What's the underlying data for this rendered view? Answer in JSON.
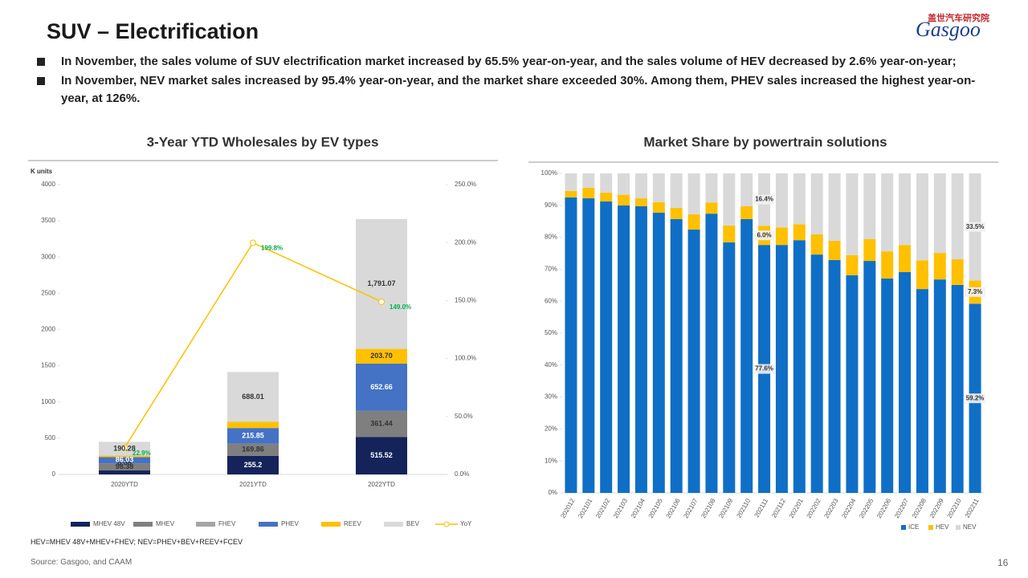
{
  "header": {
    "title": "SUV – Electrification",
    "bullets": [
      "In November, the sales volume of SUV electrification market increased by 65.5% year-on-year, and the sales volume of HEV decreased by 2.6% year-on-year;",
      "In November, NEV market sales increased by 95.4% year-on-year, and the market share exceeded 30%. Among them, PHEV sales increased the highest year-on-year, at 126%."
    ]
  },
  "logo": {
    "cn": "盖世汽车研究院",
    "en": "Gasgoo"
  },
  "chart_data": [
    {
      "type": "bar",
      "stacked": true,
      "title": "3-Year YTD Wholesales  by EV types",
      "ylabel": "K units",
      "categories": [
        "2020YTD",
        "2021YTD",
        "2022YTD"
      ],
      "ylim": [
        0,
        4000
      ],
      "yticks": [
        0,
        500,
        1000,
        1500,
        2000,
        2500,
        3000,
        3500,
        4000
      ],
      "y2lim": [
        0,
        250
      ],
      "y2ticks": [
        {
          "value": 0,
          "label": "0.0%"
        },
        {
          "value": 50,
          "label": "50.0%"
        },
        {
          "value": 100,
          "label": "100.0%"
        },
        {
          "value": 150,
          "label": "150.0%"
        },
        {
          "value": 200,
          "label": "200.0%"
        },
        {
          "value": 250,
          "label": "250.0%"
        }
      ],
      "series": [
        {
          "name": "MHEV 48V",
          "color": "#14235a",
          "values": [
            55,
            255.2,
            515.52
          ],
          "value_labels": [
            null,
            "255.2",
            "515.52"
          ]
        },
        {
          "name": "MHEV",
          "color": "#7f7f7f",
          "values": [
            98.38,
            169.86,
            361.44
          ],
          "value_labels": [
            "98.38",
            "169.86",
            "361.44"
          ]
        },
        {
          "name": "FHEV",
          "color": "#a5a5a5",
          "values": [
            0.08,
            0,
            0
          ],
          "value_labels": [
            "0.08",
            null,
            null
          ]
        },
        {
          "name": "PHEV",
          "color": "#4472c4",
          "values": [
            86.03,
            215.85,
            652.66
          ],
          "value_labels": [
            "86.03",
            "215.85",
            "652.66"
          ]
        },
        {
          "name": "REEV",
          "color": "#ffc000",
          "values": [
            20,
            85,
            203.7
          ],
          "value_labels": [
            null,
            null,
            "203.70"
          ]
        },
        {
          "name": "BEV",
          "color": "#d9d9d9",
          "values": [
            190.28,
            688.01,
            1791.07
          ],
          "value_labels": [
            "190.28",
            "688.01",
            "1,791.07"
          ]
        },
        {
          "name": "YoY",
          "color": "#ffc000",
          "type": "line",
          "axis": "y2",
          "label_color": "#00b050",
          "values": [
            22.9,
            199.8,
            149.0
          ],
          "value_labels": [
            "22.9%",
            "199.8%",
            "149.0%"
          ]
        }
      ]
    },
    {
      "type": "bar",
      "stacked": true,
      "title": "Market Share by powertrain solutions",
      "categories": [
        "202012",
        "202101",
        "202102",
        "202103",
        "202104",
        "202105",
        "202106",
        "202107",
        "202108",
        "202109",
        "202110",
        "202111",
        "202112",
        "202201",
        "202202",
        "202203",
        "202204",
        "202205",
        "202206",
        "202207",
        "202208",
        "202209",
        "202210",
        "202211"
      ],
      "ylim": [
        0,
        100
      ],
      "yticks": [
        {
          "value": 0,
          "label": "0%"
        },
        {
          "value": 10,
          "label": "10%"
        },
        {
          "value": 20,
          "label": "20%"
        },
        {
          "value": 30,
          "label": "30%"
        },
        {
          "value": 40,
          "label": "40%"
        },
        {
          "value": 50,
          "label": "50%"
        },
        {
          "value": 60,
          "label": "60%"
        },
        {
          "value": 70,
          "label": "70%"
        },
        {
          "value": 80,
          "label": "80%"
        },
        {
          "value": 90,
          "label": "90%"
        },
        {
          "value": 100,
          "label": "100%"
        }
      ],
      "series": [
        {
          "name": "ICE",
          "color": "#0f6fc6",
          "values": [
            92.5,
            92.2,
            91.2,
            90.0,
            89.7,
            87.7,
            85.7,
            82.4,
            87.4,
            78.4,
            85.7,
            77.6,
            77.6,
            79.1,
            74.6,
            72.9,
            68.1,
            72.6,
            67.1,
            69.1,
            63.8,
            66.8,
            65.1,
            59.2
          ],
          "value_labels": [
            null,
            null,
            null,
            null,
            null,
            null,
            null,
            null,
            null,
            null,
            null,
            "77.6%",
            null,
            null,
            null,
            null,
            null,
            null,
            null,
            null,
            null,
            null,
            null,
            "59.2%"
          ]
        },
        {
          "name": "HEV",
          "color": "#ffc000",
          "values": [
            2.0,
            3.3,
            2.8,
            3.3,
            2.5,
            3.3,
            3.5,
            4.8,
            3.5,
            5.3,
            4.0,
            6.0,
            5.5,
            5.0,
            6.3,
            6.0,
            6.3,
            6.8,
            8.5,
            8.5,
            9.0,
            8.3,
            8.0,
            7.3
          ],
          "value_labels": [
            null,
            null,
            null,
            null,
            null,
            null,
            null,
            null,
            null,
            null,
            null,
            "6.0%",
            null,
            null,
            null,
            null,
            null,
            null,
            null,
            null,
            null,
            null,
            null,
            "7.3%"
          ]
        },
        {
          "name": "NEV",
          "color": "#d9d9d9",
          "values": [
            5.5,
            4.5,
            6.0,
            6.7,
            7.8,
            9.0,
            10.8,
            12.8,
            9.1,
            16.3,
            10.3,
            16.4,
            16.9,
            15.9,
            19.1,
            21.1,
            25.6,
            20.6,
            24.4,
            22.4,
            27.2,
            24.9,
            26.9,
            33.5
          ],
          "value_labels": [
            null,
            null,
            null,
            null,
            null,
            null,
            null,
            null,
            null,
            null,
            null,
            "16.4%",
            null,
            null,
            null,
            null,
            null,
            null,
            null,
            null,
            null,
            null,
            null,
            "33.5%"
          ]
        }
      ]
    }
  ],
  "footer": {
    "note": "HEV=MHEV 48V+MHEV+FHEV; NEV=PHEV+BEV+REEV+FCEV",
    "source": "Source: Gasgoo, and CAAM",
    "page": "16"
  }
}
